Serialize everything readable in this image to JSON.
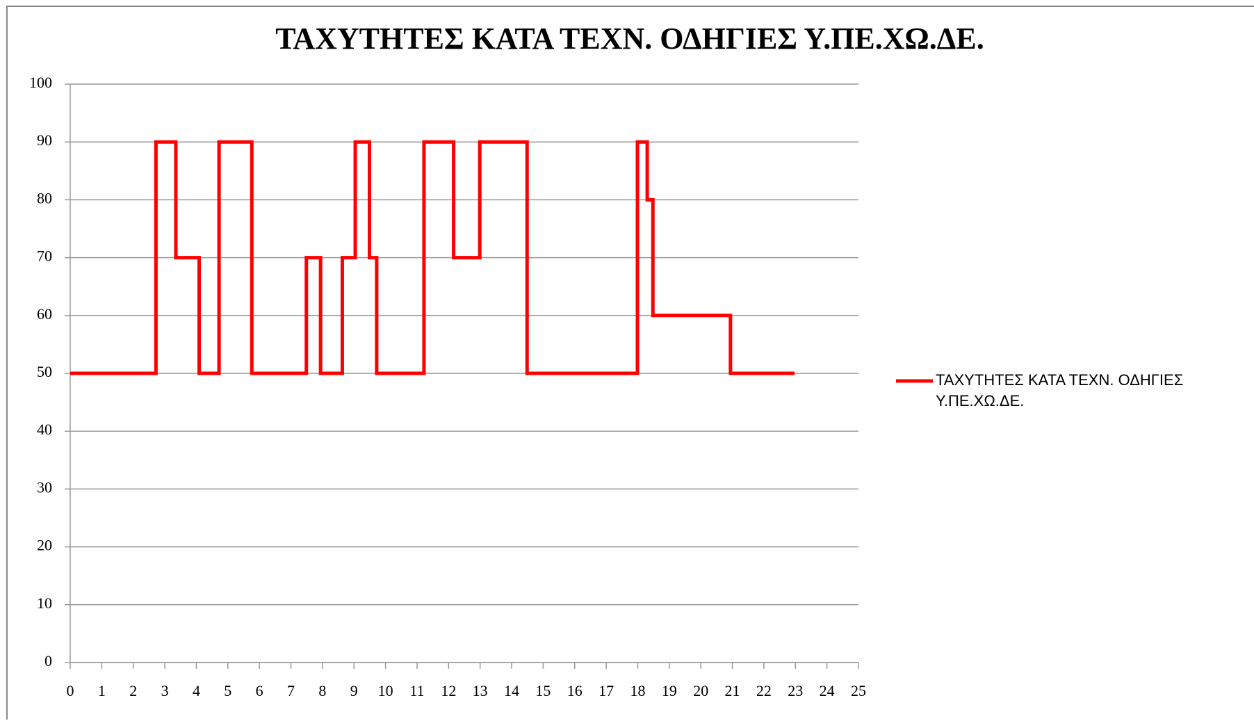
{
  "chart_data": {
    "type": "line",
    "title": "ΤΑΧΥΤΗΤΕΣ ΚΑΤΑ ΤΕΧΝ. ΟΔΗΓΙΕΣ Υ.ΠΕ.ΧΩ.ΔΕ.",
    "x": [
      0,
      2.72,
      2.72,
      3.35,
      3.35,
      4.09,
      4.09,
      4.72,
      4.72,
      5.76,
      5.76,
      7.49,
      7.49,
      7.94,
      7.94,
      8.63,
      8.63,
      9.04,
      9.04,
      9.49,
      9.49,
      9.72,
      9.72,
      11.22,
      11.22,
      12.16,
      12.16,
      12.99,
      12.99,
      14.49,
      14.49,
      17.99,
      17.99,
      18.3,
      18.3,
      18.48,
      18.48,
      20.94,
      20.94,
      22.97
    ],
    "series": [
      {
        "name": "ΤΑΧΥΤΗΤΕΣ ΚΑΤΑ ΤΕΧΝ. ΟΔΗΓΙΕΣ Υ.ΠΕ.ΧΩ.ΔΕ.",
        "color": "#ff0000",
        "values": [
          50,
          50,
          90,
          90,
          70,
          70,
          50,
          50,
          90,
          90,
          50,
          50,
          70,
          70,
          50,
          50,
          70,
          70,
          90,
          90,
          70,
          70,
          50,
          50,
          90,
          90,
          70,
          70,
          90,
          90,
          50,
          50,
          90,
          90,
          80,
          80,
          60,
          60,
          50,
          50
        ]
      }
    ],
    "xlim": [
      0,
      25
    ],
    "xticks": [
      0,
      1,
      2,
      3,
      4,
      5,
      6,
      7,
      8,
      9,
      10,
      11,
      12,
      13,
      14,
      15,
      16,
      17,
      18,
      19,
      20,
      21,
      22,
      23,
      24,
      25
    ],
    "ylim": [
      0,
      100
    ],
    "yticks": [
      0,
      10,
      20,
      30,
      40,
      50,
      60,
      70,
      80,
      90,
      100
    ],
    "grid": true,
    "legend": "right"
  }
}
